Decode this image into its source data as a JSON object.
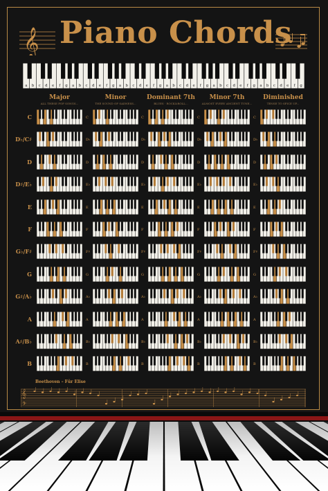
{
  "poster": {
    "title": "Piano Chords",
    "keyboard_letters": [
      "a",
      "b",
      "c",
      "d",
      "e",
      "f",
      "g"
    ],
    "columns": [
      {
        "name": "Major",
        "sub": "ALL THESE POP SONGS..."
      },
      {
        "name": "Minor",
        "sub": "THE SOUND OF SADNESS..."
      },
      {
        "name": "Dominant 7th",
        "sub": "BLUES · ROCK&ROLL..."
      },
      {
        "name": "Minor 7th",
        "sub": "ALMOST EVERY ANCIENT TUNE..."
      },
      {
        "name": "Diminished",
        "sub": "TENSE TO SPICE UP..."
      }
    ],
    "rows": [
      {
        "label": "C",
        "small": "C"
      },
      {
        "label": "D♭/C♯",
        "small": "D♭"
      },
      {
        "label": "D",
        "small": "D"
      },
      {
        "label": "D♯/E♭",
        "small": "E♭"
      },
      {
        "label": "E",
        "small": "E"
      },
      {
        "label": "F",
        "small": "F"
      },
      {
        "label": "G♭/F♯",
        "small": "F♯"
      },
      {
        "label": "G",
        "small": "G"
      },
      {
        "label": "G♯/A♭",
        "small": "A♭"
      },
      {
        "label": "A",
        "small": "A"
      },
      {
        "label": "A♯/B♭",
        "small": "B♭"
      },
      {
        "label": "B",
        "small": "B"
      }
    ],
    "sheet_title": "Beethoven – Für Elise",
    "colors": {
      "gold": "#c8904a",
      "background": "#141414",
      "highlight": "#c8904a"
    }
  }
}
